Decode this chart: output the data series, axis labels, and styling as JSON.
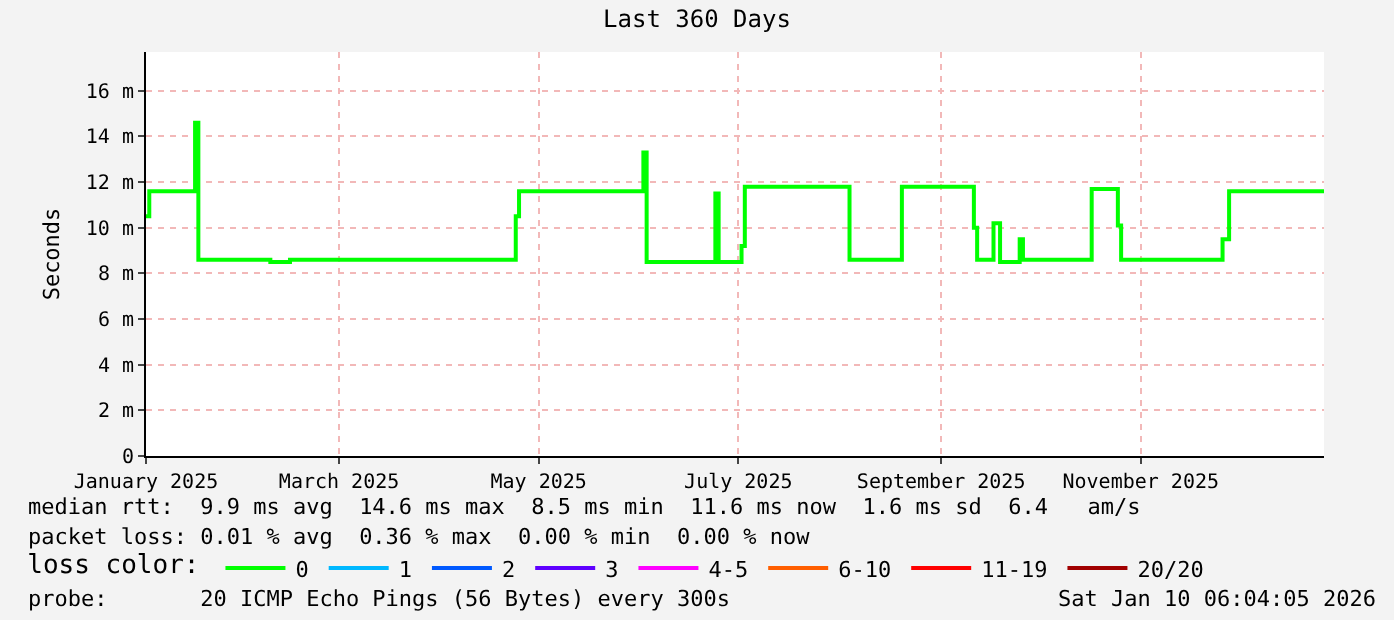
{
  "chart_data": {
    "type": "step",
    "title": "Last 360 Days",
    "ylabel": "Seconds",
    "x": [
      "2025-01-15",
      "2025-01-16",
      "2025-01-29",
      "2025-01-30",
      "2025-01-31",
      "2025-02-22",
      "2025-02-28",
      "2025-05-08",
      "2025-05-09",
      "2025-06-15",
      "2025-06-16",
      "2025-06-17",
      "2025-07-07",
      "2025-07-08",
      "2025-07-09",
      "2025-07-16",
      "2025-07-17",
      "2025-08-17",
      "2025-08-18",
      "2025-09-02",
      "2025-09-03",
      "2025-09-24",
      "2025-09-25",
      "2025-09-26",
      "2025-09-30",
      "2025-10-01",
      "2025-10-03",
      "2025-10-07",
      "2025-10-09",
      "2025-10-10",
      "2025-10-30",
      "2025-10-31",
      "2025-11-07",
      "2025-11-08",
      "2025-11-09",
      "2025-12-09",
      "2025-12-10",
      "2025-12-12",
      "2026-01-10"
    ],
    "series": [
      {
        "name": "0",
        "color": "#00ff00",
        "values": [
          10.5,
          11.6,
          11.6,
          14.6,
          8.6,
          8.5,
          8.6,
          10.5,
          11.6,
          11.6,
          13.3,
          8.5,
          8.5,
          11.5,
          8.5,
          9.2,
          11.8,
          11.8,
          8.6,
          8.6,
          11.8,
          11.8,
          10.0,
          8.6,
          8.6,
          10.2,
          8.5,
          8.5,
          9.5,
          8.6,
          8.6,
          11.7,
          11.7,
          10.1,
          8.6,
          8.6,
          9.5,
          11.6,
          11.6
        ]
      },
      {
        "name": "1",
        "color": "#00b8ff",
        "values": [
          null,
          null,
          null,
          null,
          null,
          null,
          null,
          null,
          null,
          null,
          null,
          null,
          null,
          null,
          null,
          null,
          null,
          null,
          null,
          null,
          null,
          null,
          null,
          null,
          null,
          null,
          null,
          null,
          null,
          null,
          null,
          null,
          null,
          null,
          null,
          null,
          null,
          null,
          null
        ]
      },
      {
        "name": "2",
        "color": "#0059ff",
        "values": [
          null,
          null,
          null,
          null,
          null,
          null,
          null,
          null,
          null,
          null,
          null,
          null,
          null,
          null,
          null,
          null,
          null,
          null,
          null,
          null,
          null,
          null,
          null,
          null,
          null,
          null,
          null,
          null,
          null,
          null,
          null,
          null,
          null,
          null,
          null,
          null,
          null,
          null,
          null
        ]
      },
      {
        "name": "3",
        "color": "#5e00ff",
        "values": [
          null,
          null,
          null,
          null,
          null,
          null,
          null,
          null,
          null,
          null,
          null,
          null,
          null,
          null,
          null,
          null,
          null,
          null,
          null,
          null,
          null,
          null,
          null,
          null,
          null,
          null,
          null,
          null,
          null,
          null,
          null,
          null,
          null,
          null,
          null,
          null,
          null,
          null,
          null
        ]
      },
      {
        "name": "4-5",
        "color": "#ff00ff",
        "values": [
          null,
          null,
          null,
          null,
          null,
          null,
          null,
          null,
          null,
          null,
          null,
          null,
          null,
          null,
          null,
          null,
          null,
          null,
          null,
          null,
          null,
          null,
          null,
          null,
          null,
          null,
          null,
          null,
          null,
          null,
          null,
          null,
          null,
          null,
          null,
          null,
          null,
          null,
          null
        ]
      },
      {
        "name": "6-10",
        "color": "#ff5e00",
        "values": [
          null,
          null,
          null,
          null,
          null,
          null,
          null,
          null,
          null,
          null,
          null,
          null,
          null,
          null,
          null,
          null,
          null,
          null,
          null,
          null,
          null,
          null,
          null,
          null,
          null,
          null,
          null,
          null,
          null,
          null,
          null,
          null,
          null,
          null,
          null,
          null,
          null,
          null,
          null
        ]
      },
      {
        "name": "11-19",
        "color": "#ff0000",
        "values": [
          null,
          null,
          null,
          null,
          null,
          null,
          null,
          null,
          null,
          null,
          null,
          null,
          null,
          null,
          null,
          null,
          null,
          null,
          null,
          null,
          null,
          null,
          null,
          null,
          null,
          null,
          null,
          null,
          null,
          null,
          null,
          null,
          null,
          null,
          null,
          null,
          null,
          null,
          null
        ]
      },
      {
        "name": "20/20",
        "color": "#a10000",
        "values": [
          null,
          null,
          null,
          null,
          null,
          null,
          null,
          null,
          null,
          null,
          null,
          null,
          null,
          null,
          null,
          null,
          null,
          null,
          null,
          null,
          null,
          null,
          null,
          null,
          null,
          null,
          null,
          null,
          null,
          null,
          null,
          null,
          null,
          null,
          null,
          null,
          null,
          null,
          null
        ]
      }
    ],
    "xlim": [
      "2025-01-15",
      "2026-01-10"
    ],
    "xticks": [
      {
        "value": "2025-01-15",
        "label": "January 2025"
      },
      {
        "value": "2025-03-15",
        "label": "March 2025"
      },
      {
        "value": "2025-05-15",
        "label": "May 2025"
      },
      {
        "value": "2025-07-15",
        "label": "July 2025"
      },
      {
        "value": "2025-09-15",
        "label": "September 2025"
      },
      {
        "value": "2025-11-15",
        "label": "November 2025"
      }
    ],
    "ylim": [
      0,
      17.7
    ],
    "yticks": [
      {
        "value": 0,
        "label": "0"
      },
      {
        "value": 2,
        "label": "2 m"
      },
      {
        "value": 4,
        "label": "4 m"
      },
      {
        "value": 6,
        "label": "6 m"
      },
      {
        "value": 8,
        "label": "8 m"
      },
      {
        "value": 10,
        "label": "10 m"
      },
      {
        "value": 12,
        "label": "12 m"
      },
      {
        "value": 14,
        "label": "14 m"
      },
      {
        "value": 16,
        "label": "16 m"
      }
    ],
    "grid": true,
    "legend": "bottom",
    "legend_title": "loss color:",
    "marker": "none",
    "line_style": "solid",
    "annotations": [
      "median rtt:  9.9 ms avg  14.6 ms max  8.5 ms min  11.6 ms now  1.6 ms sd  6.4   am/s",
      "packet loss: 0.01 % avg  0.36 % max  0.00 % min  0.00 % now",
      "probe:       20 ICMP Echo Pings (56 Bytes) every 300s",
      "Sat Jan 10 06:04:05 2026"
    ]
  }
}
